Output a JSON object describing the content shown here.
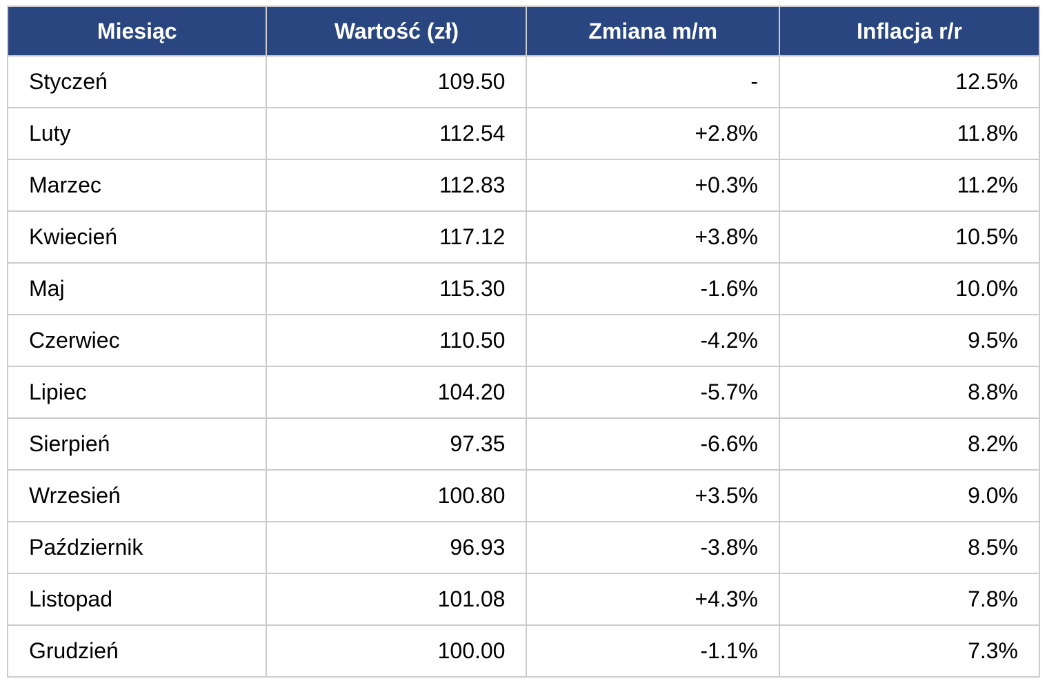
{
  "colors": {
    "header_bg": "#2A4680",
    "header_text": "#FFFFFF",
    "border": "#CBCBCB",
    "row_bg": "#FFFFFF",
    "cell_text": "#000000"
  },
  "chart_data": {
    "type": "table",
    "columns": [
      "Miesiąc",
      "Wartość (zł)",
      "Zmiana m/m",
      "Inflacja r/r"
    ],
    "rows": [
      [
        "Styczeń",
        "109.50",
        "-",
        "12.5%"
      ],
      [
        "Luty",
        "112.54",
        "+2.8%",
        "11.8%"
      ],
      [
        "Marzec",
        "112.83",
        "+0.3%",
        "11.2%"
      ],
      [
        "Kwiecień",
        "117.12",
        "+3.8%",
        "10.5%"
      ],
      [
        "Maj",
        "115.30",
        "-1.6%",
        "10.0%"
      ],
      [
        "Czerwiec",
        "110.50",
        "-4.2%",
        "9.5%"
      ],
      [
        "Lipiec",
        "104.20",
        "-5.7%",
        "8.8%"
      ],
      [
        "Sierpień",
        "97.35",
        "-6.6%",
        "8.2%"
      ],
      [
        "Wrzesień",
        "100.80",
        "+3.5%",
        "9.0%"
      ],
      [
        "Październik",
        "96.93",
        "-3.8%",
        "8.5%"
      ],
      [
        "Listopad",
        "101.08",
        "+4.3%",
        "7.8%"
      ],
      [
        "Grudzień",
        "100.00",
        "-1.1%",
        "7.3%"
      ]
    ],
    "series": [
      {
        "name": "Wartość (zł)",
        "values": [
          109.5,
          112.54,
          112.83,
          117.12,
          115.3,
          110.5,
          104.2,
          97.35,
          100.8,
          96.93,
          101.08,
          100.0
        ]
      },
      {
        "name": "Zmiana m/m (%)",
        "values": [
          null,
          2.8,
          0.3,
          3.8,
          -1.6,
          -4.2,
          -5.7,
          -6.6,
          3.5,
          -3.8,
          4.3,
          -1.1
        ]
      },
      {
        "name": "Inflacja r/r (%)",
        "values": [
          12.5,
          11.8,
          11.2,
          10.5,
          10.0,
          9.5,
          8.8,
          8.2,
          9.0,
          8.5,
          7.8,
          7.3
        ]
      }
    ],
    "categories": [
      "Styczeń",
      "Luty",
      "Marzec",
      "Kwiecień",
      "Maj",
      "Czerwiec",
      "Lipiec",
      "Sierpień",
      "Wrzesień",
      "Październik",
      "Listopad",
      "Grudzień"
    ]
  }
}
